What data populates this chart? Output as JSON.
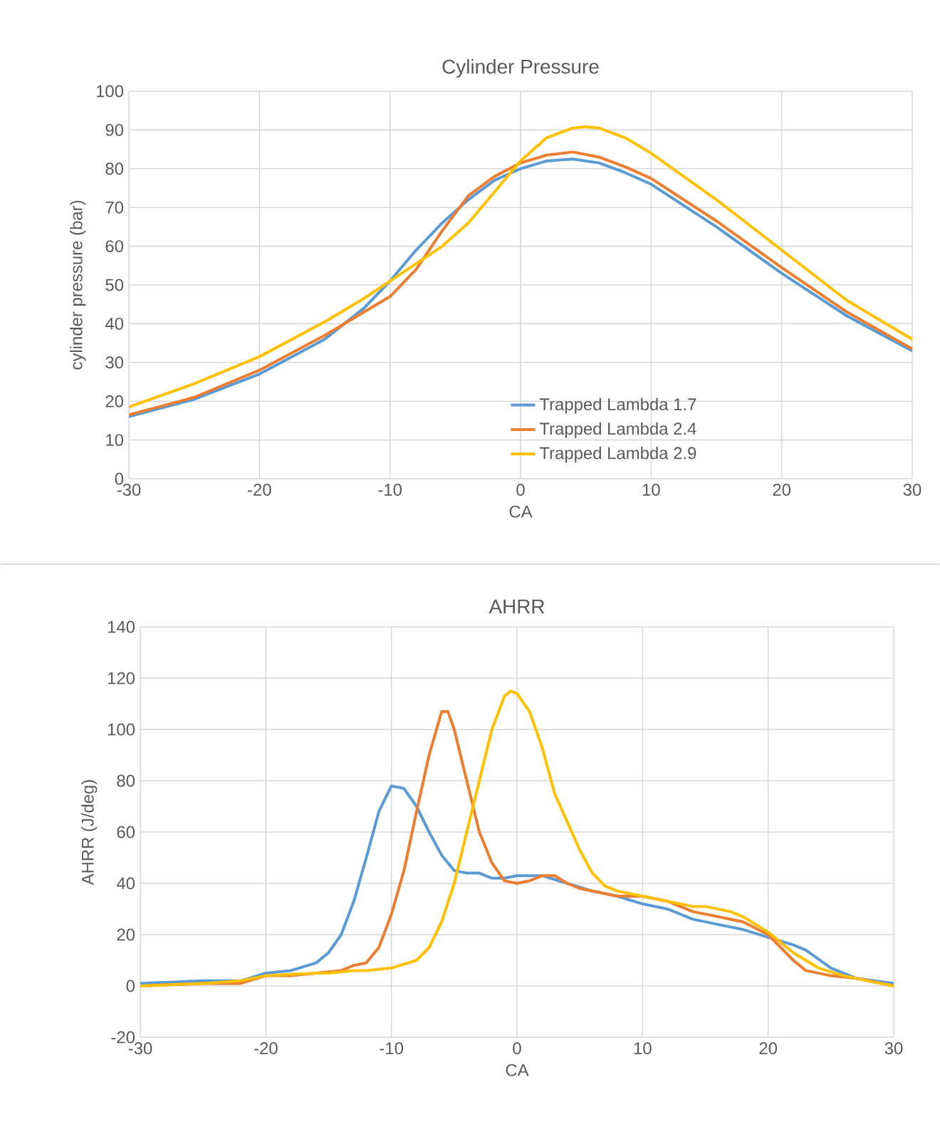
{
  "chart_data": [
    {
      "type": "line",
      "title": "Cylinder Pressure",
      "xlabel": "CA",
      "ylabel": "cylinder pressure (bar)",
      "xlim": [
        -30,
        30
      ],
      "ylim": [
        0,
        100
      ],
      "xticks": [
        -30,
        -20,
        -10,
        0,
        10,
        20,
        30
      ],
      "yticks": [
        0,
        10,
        20,
        30,
        40,
        50,
        60,
        70,
        80,
        90,
        100
      ],
      "grid": true,
      "legend": "bottom right",
      "line_style": "solid",
      "marker": "none",
      "series": [
        {
          "name": "Trapped Lambda 1.7",
          "color": "#5b9bd5",
          "x": [
            -30,
            -25,
            -20,
            -15,
            -12,
            -10,
            -8,
            -6,
            -4,
            -2,
            0,
            2,
            4,
            6,
            8,
            10,
            15,
            20,
            25,
            30
          ],
          "values": [
            16,
            20.5,
            27,
            36,
            44,
            51,
            59,
            66,
            72,
            77,
            80,
            82,
            82.5,
            81.5,
            79,
            76,
            65,
            53,
            42,
            33
          ]
        },
        {
          "name": "Trapped Lambda 2.4",
          "color": "#ed7d31",
          "x": [
            -30,
            -25,
            -20,
            -15,
            -12,
            -10,
            -8,
            -6,
            -4,
            -2,
            0,
            2,
            4,
            6,
            8,
            10,
            15,
            20,
            25,
            30
          ],
          "values": [
            16.5,
            21,
            28,
            37,
            43,
            47,
            54,
            64,
            73,
            78,
            81.5,
            83.5,
            84.3,
            83,
            80.5,
            77.5,
            66.5,
            54.5,
            43,
            33.5
          ]
        },
        {
          "name": "Trapped Lambda 2.9",
          "color": "#ffc000",
          "x": [
            -30,
            -25,
            -20,
            -15,
            -12,
            -10,
            -8,
            -6,
            -4,
            -2,
            0,
            2,
            4,
            5,
            6,
            8,
            10,
            15,
            20,
            25,
            30
          ],
          "values": [
            18.5,
            24.5,
            31.5,
            40.5,
            46.5,
            51,
            55.5,
            60,
            66,
            74,
            82,
            88,
            90.5,
            90.8,
            90.5,
            88,
            84,
            72,
            59,
            46,
            36
          ]
        }
      ]
    },
    {
      "type": "line",
      "title": "AHRR",
      "xlabel": "CA",
      "ylabel": "AHRR (J/deg)",
      "xlim": [
        -30,
        30
      ],
      "ylim": [
        -20,
        140
      ],
      "xticks": [
        -30,
        -20,
        -10,
        0,
        10,
        20,
        30
      ],
      "yticks": [
        -20,
        0,
        20,
        40,
        60,
        80,
        100,
        120,
        140
      ],
      "grid": true,
      "legend": false,
      "line_style": "solid",
      "marker": "none",
      "series": [
        {
          "color": "#5b9bd5",
          "x": [
            -30,
            -25,
            -22,
            -20,
            -18,
            -16,
            -15,
            -14,
            -13,
            -12,
            -11,
            -10,
            -9,
            -8,
            -7,
            -6,
            -5,
            -4,
            -3,
            -2,
            -1,
            0,
            2,
            4,
            6,
            8,
            10,
            12,
            14,
            16,
            18,
            20,
            22,
            23,
            25,
            27,
            30
          ],
          "values": [
            1,
            2,
            2,
            5,
            6,
            9,
            13,
            20,
            33,
            50,
            68,
            78,
            77,
            70,
            60,
            51,
            45,
            44,
            44,
            42,
            42,
            43,
            43,
            40,
            37,
            35,
            32,
            30,
            26,
            24,
            22,
            19,
            16,
            14,
            7,
            3,
            1
          ]
        },
        {
          "color": "#ed7d31",
          "x": [
            -30,
            -25,
            -22,
            -20,
            -18,
            -16,
            -14,
            -13,
            -12,
            -11,
            -10,
            -9,
            -8,
            -7,
            -6,
            -5.5,
            -5,
            -4,
            -3,
            -2,
            -1,
            0,
            1,
            2,
            3,
            4,
            5,
            6,
            8,
            10,
            12,
            14,
            16,
            18,
            20,
            21,
            22,
            23,
            25,
            27,
            30
          ],
          "values": [
            0,
            1,
            1,
            4,
            4,
            5,
            6,
            8,
            9,
            15,
            28,
            45,
            68,
            90,
            107,
            107,
            100,
            80,
            60,
            48,
            41,
            40,
            41,
            43,
            43,
            40,
            38,
            37,
            35,
            35,
            33,
            29,
            27,
            25,
            20,
            15,
            10,
            6,
            4,
            3,
            0
          ]
        },
        {
          "color": "#ffc000",
          "x": [
            -30,
            -25,
            -22,
            -20,
            -16,
            -15,
            -13,
            -12,
            -10,
            -8,
            -7,
            -6,
            -5,
            -4,
            -3,
            -2,
            -1,
            -0.5,
            0,
            1,
            2,
            3,
            4,
            5,
            6,
            7,
            8,
            10,
            12,
            14,
            15,
            17,
            18,
            20,
            22,
            24,
            26,
            30
          ],
          "values": [
            0,
            1,
            2,
            4,
            5,
            5,
            6,
            6,
            7,
            10,
            15,
            25,
            40,
            60,
            80,
            100,
            113,
            115,
            114,
            107,
            93,
            75,
            64,
            53,
            44,
            39,
            37,
            35,
            33,
            31,
            31,
            29,
            27,
            21,
            13,
            7,
            4,
            0
          ]
        }
      ]
    }
  ]
}
